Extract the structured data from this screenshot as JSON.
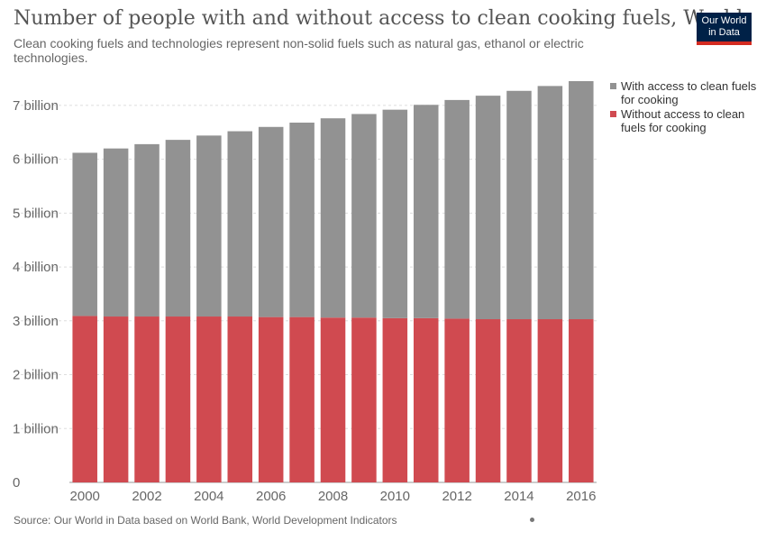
{
  "header": {
    "title": "Number of people with and without access to clean cooking fuels, World",
    "subtitle": "Clean cooking fuels and technologies represent non-solid fuels such as natural gas, ethanol or electric technologies."
  },
  "logo": {
    "line1": "Our World",
    "line2": "in Data"
  },
  "footer": {
    "source": "Source: Our World in Data based on World Bank, World Development Indicators"
  },
  "colors": {
    "with_access": "#929292",
    "without_access": "#d04a50",
    "grid": "#dddddd",
    "logo_bg": "#002147",
    "logo_bar": "#d42b21"
  },
  "chart_data": {
    "type": "bar",
    "stacked": true,
    "categories": [
      "2000",
      "2001",
      "2002",
      "2003",
      "2004",
      "2005",
      "2006",
      "2007",
      "2008",
      "2009",
      "2010",
      "2011",
      "2012",
      "2013",
      "2014",
      "2015",
      "2016"
    ],
    "x_tick_labels": [
      "2000",
      "2002",
      "2004",
      "2006",
      "2008",
      "2010",
      "2012",
      "2014",
      "2016"
    ],
    "y_tick_labels": [
      "0",
      "1 billion",
      "2 billion",
      "3 billion",
      "4 billion",
      "5 billion",
      "6 billion",
      "7 billion"
    ],
    "y_ticks": [
      0,
      1,
      2,
      3,
      4,
      5,
      6,
      7
    ],
    "ylim": [
      0,
      7.45
    ],
    "legend_position": "right",
    "grid": true,
    "series": [
      {
        "name": "Without access to clean fuels for cooking",
        "legend_lines": [
          "Without access to clean",
          "fuels for cooking"
        ],
        "values": [
          3.09,
          3.08,
          3.08,
          3.08,
          3.08,
          3.08,
          3.07,
          3.07,
          3.06,
          3.06,
          3.05,
          3.05,
          3.04,
          3.03,
          3.03,
          3.03,
          3.03
        ]
      },
      {
        "name": "With access to clean fuels for cooking",
        "legend_lines": [
          "With access to clean fuels",
          "for cooking"
        ],
        "values": [
          3.03,
          3.12,
          3.2,
          3.28,
          3.36,
          3.44,
          3.53,
          3.61,
          3.7,
          3.78,
          3.87,
          3.96,
          4.06,
          4.15,
          4.24,
          4.33,
          4.42
        ]
      }
    ]
  }
}
